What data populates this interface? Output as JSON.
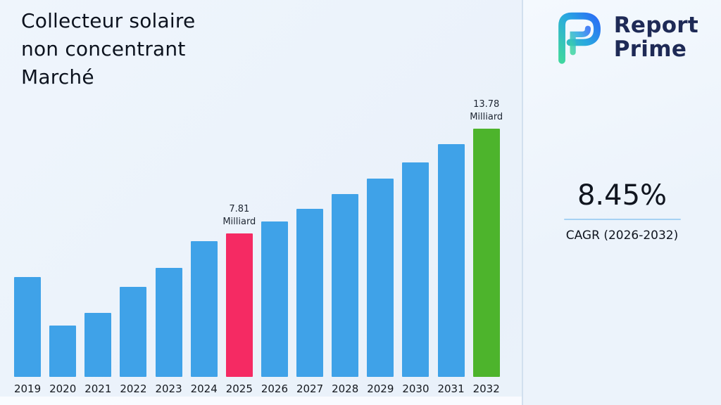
{
  "title": {
    "lines": [
      "Collecteur solaire",
      "non concentrant",
      "Marché"
    ]
  },
  "brand": {
    "name_line1": "Report",
    "name_line2": "Prime",
    "text_color": "#1e2a56"
  },
  "stats": {
    "cagr_value": "8.45%",
    "cagr_label": "CAGR (2026-2032)",
    "underline_color": "#a6d2f3"
  },
  "chart_data": {
    "type": "bar",
    "title": "Collecteur solaire non concentrant Marché",
    "categories": [
      "2019",
      "2020",
      "2021",
      "2022",
      "2023",
      "2024",
      "2025",
      "2026",
      "2027",
      "2028",
      "2029",
      "2030",
      "2031",
      "2032"
    ],
    "values": [
      5.46,
      2.8,
      3.49,
      4.91,
      5.95,
      7.4,
      7.81,
      8.47,
      9.18,
      9.96,
      10.8,
      11.71,
      12.7,
      13.78
    ],
    "unit": "Milliard",
    "ylim": [
      0,
      14
    ],
    "grid": false,
    "legend": false,
    "xlabel": "",
    "ylabel": "",
    "bar_color_default": "#3fa2e8",
    "bar_color_overrides": {
      "2025": "#f52a63",
      "2032": "#4db42c"
    },
    "annotations": [
      {
        "category": "2025",
        "lines": [
          "7.81",
          "Milliard"
        ]
      },
      {
        "category": "2032",
        "lines": [
          "13.78",
          "Milliard"
        ]
      }
    ]
  }
}
